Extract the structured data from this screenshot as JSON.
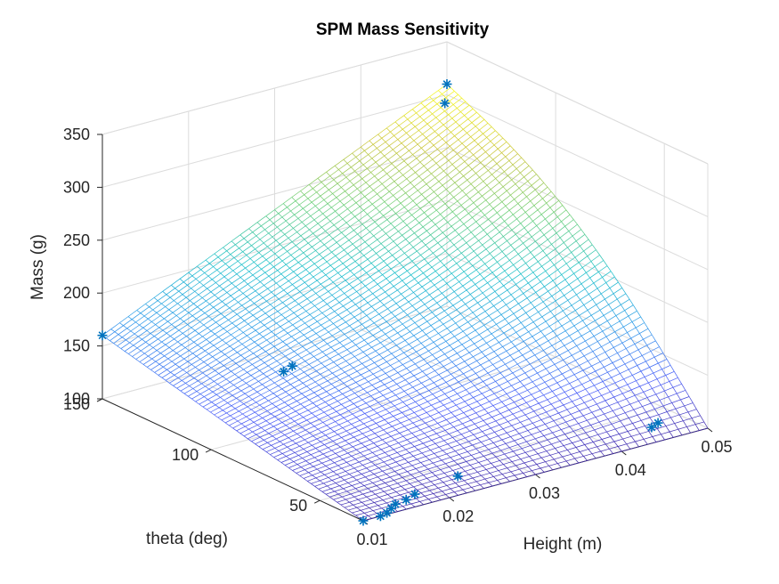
{
  "chart_data": {
    "type": "surface",
    "title": "SPM Mass Sensitivity",
    "xlabel": "Height (m)",
    "ylabel": "theta (deg)",
    "zlabel": "Mass (g)",
    "xlim": [
      0.01,
      0.05
    ],
    "ylim": [
      30,
      150
    ],
    "zlim": [
      100,
      350
    ],
    "xticks": [
      "0.01",
      "0.02",
      "0.03",
      "0.04",
      "0.05"
    ],
    "yticks": [
      "50",
      "100",
      "150"
    ],
    "zticks": [
      "100",
      "150",
      "200",
      "250",
      "300",
      "350"
    ],
    "grid": true,
    "colormap": "parula",
    "mesh_color_low": "#3e26a8",
    "mesh_color_high": "#f9fb0e",
    "marker_color": "#0072bd",
    "marker": "asterisk",
    "surface_corners": [
      {
        "height": 0.01,
        "theta": 30,
        "mass": 100
      },
      {
        "height": 0.01,
        "theta": 150,
        "mass": 160
      },
      {
        "height": 0.05,
        "theta": 150,
        "mass": 310
      },
      {
        "height": 0.05,
        "theta": 30,
        "mass": 100
      }
    ],
    "points": [
      {
        "height": 0.01,
        "theta": 150,
        "mass": 160
      },
      {
        "height": 0.01,
        "theta": 30,
        "mass": 100
      },
      {
        "height": 0.012,
        "theta": 30,
        "mass": 100
      },
      {
        "height": 0.013,
        "theta": 31,
        "mass": 100
      },
      {
        "height": 0.014,
        "theta": 33,
        "mass": 100
      },
      {
        "height": 0.015,
        "theta": 35,
        "mass": 100
      },
      {
        "height": 0.0165,
        "theta": 36,
        "mass": 100
      },
      {
        "height": 0.018,
        "theta": 38,
        "mass": 100
      },
      {
        "height": 0.024,
        "theta": 42,
        "mass": 100
      },
      {
        "height": 0.046,
        "theta": 40,
        "mass": 100
      },
      {
        "height": 0.047,
        "theta": 41,
        "mass": 101
      },
      {
        "height": 0.026,
        "theta": 130,
        "mass": 110
      },
      {
        "height": 0.0275,
        "theta": 132,
        "mass": 110
      },
      {
        "height": 0.0485,
        "theta": 145,
        "mass": 300
      },
      {
        "height": 0.05,
        "theta": 150,
        "mass": 310
      }
    ]
  }
}
